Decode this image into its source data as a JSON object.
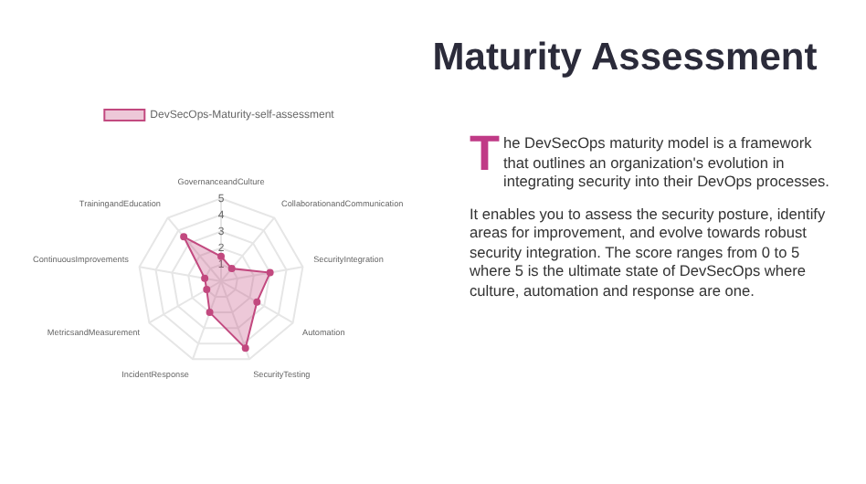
{
  "chart_data": {
    "type": "radar",
    "title": "Maturity Assessment",
    "categories": [
      "GovernanceandCulture",
      "CollaborationandCommunication",
      "SecurityIntegration",
      "Automation",
      "SecurityTesting",
      "IncidentResponse",
      "MetricsandMeasurement",
      "ContinuousImprovements",
      "TrainingandEducation"
    ],
    "series": [
      {
        "name": "DevSecOps-Maturity-self-assessment",
        "color": "#c2497f",
        "values": [
          1.5,
          1,
          3,
          2.5,
          4.3,
          2,
          1,
          1,
          3.5
        ]
      }
    ],
    "ylim": [
      0,
      5
    ],
    "yticks": [
      1,
      2,
      3,
      4,
      5
    ],
    "grid": true,
    "legend": "top",
    "marker": "circle",
    "annotations": [
      "The DevSecOps maturity model is a framework that outlines an organization's evolution in integrating security into their DevOps processes.",
      " It enables you to assess the security posture, identify areas for improvement, and evolve towards robust security integration. The score ranges from 0 to 5 where 5 is the ultimate state of DevSecOps where culture, automation and response are one."
    ]
  }
}
